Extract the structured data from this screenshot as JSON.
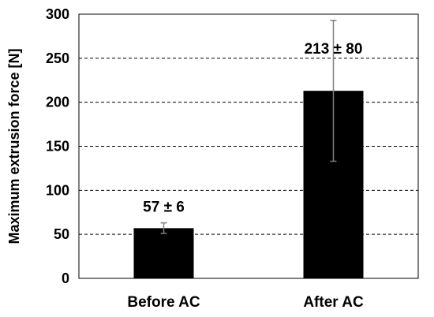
{
  "chart_data": {
    "type": "bar",
    "categories": [
      "Before AC",
      "After AC"
    ],
    "values": [
      57,
      213
    ],
    "errors": [
      6,
      80
    ],
    "data_labels": [
      "57 ± 6",
      "213 ± 80"
    ],
    "title": "",
    "xlabel": "",
    "ylabel": "Maximum extrusion force [N]",
    "ylim": [
      0,
      300
    ],
    "yticks": [
      "0",
      "50",
      "100",
      "150",
      "200",
      "250",
      "300"
    ],
    "grid": "horizontal-dashed",
    "legend": "none",
    "colors": {
      "bar": "#000000",
      "error_bar": "#7f7f7f",
      "grid": "#000000",
      "axis": "#000000"
    }
  }
}
